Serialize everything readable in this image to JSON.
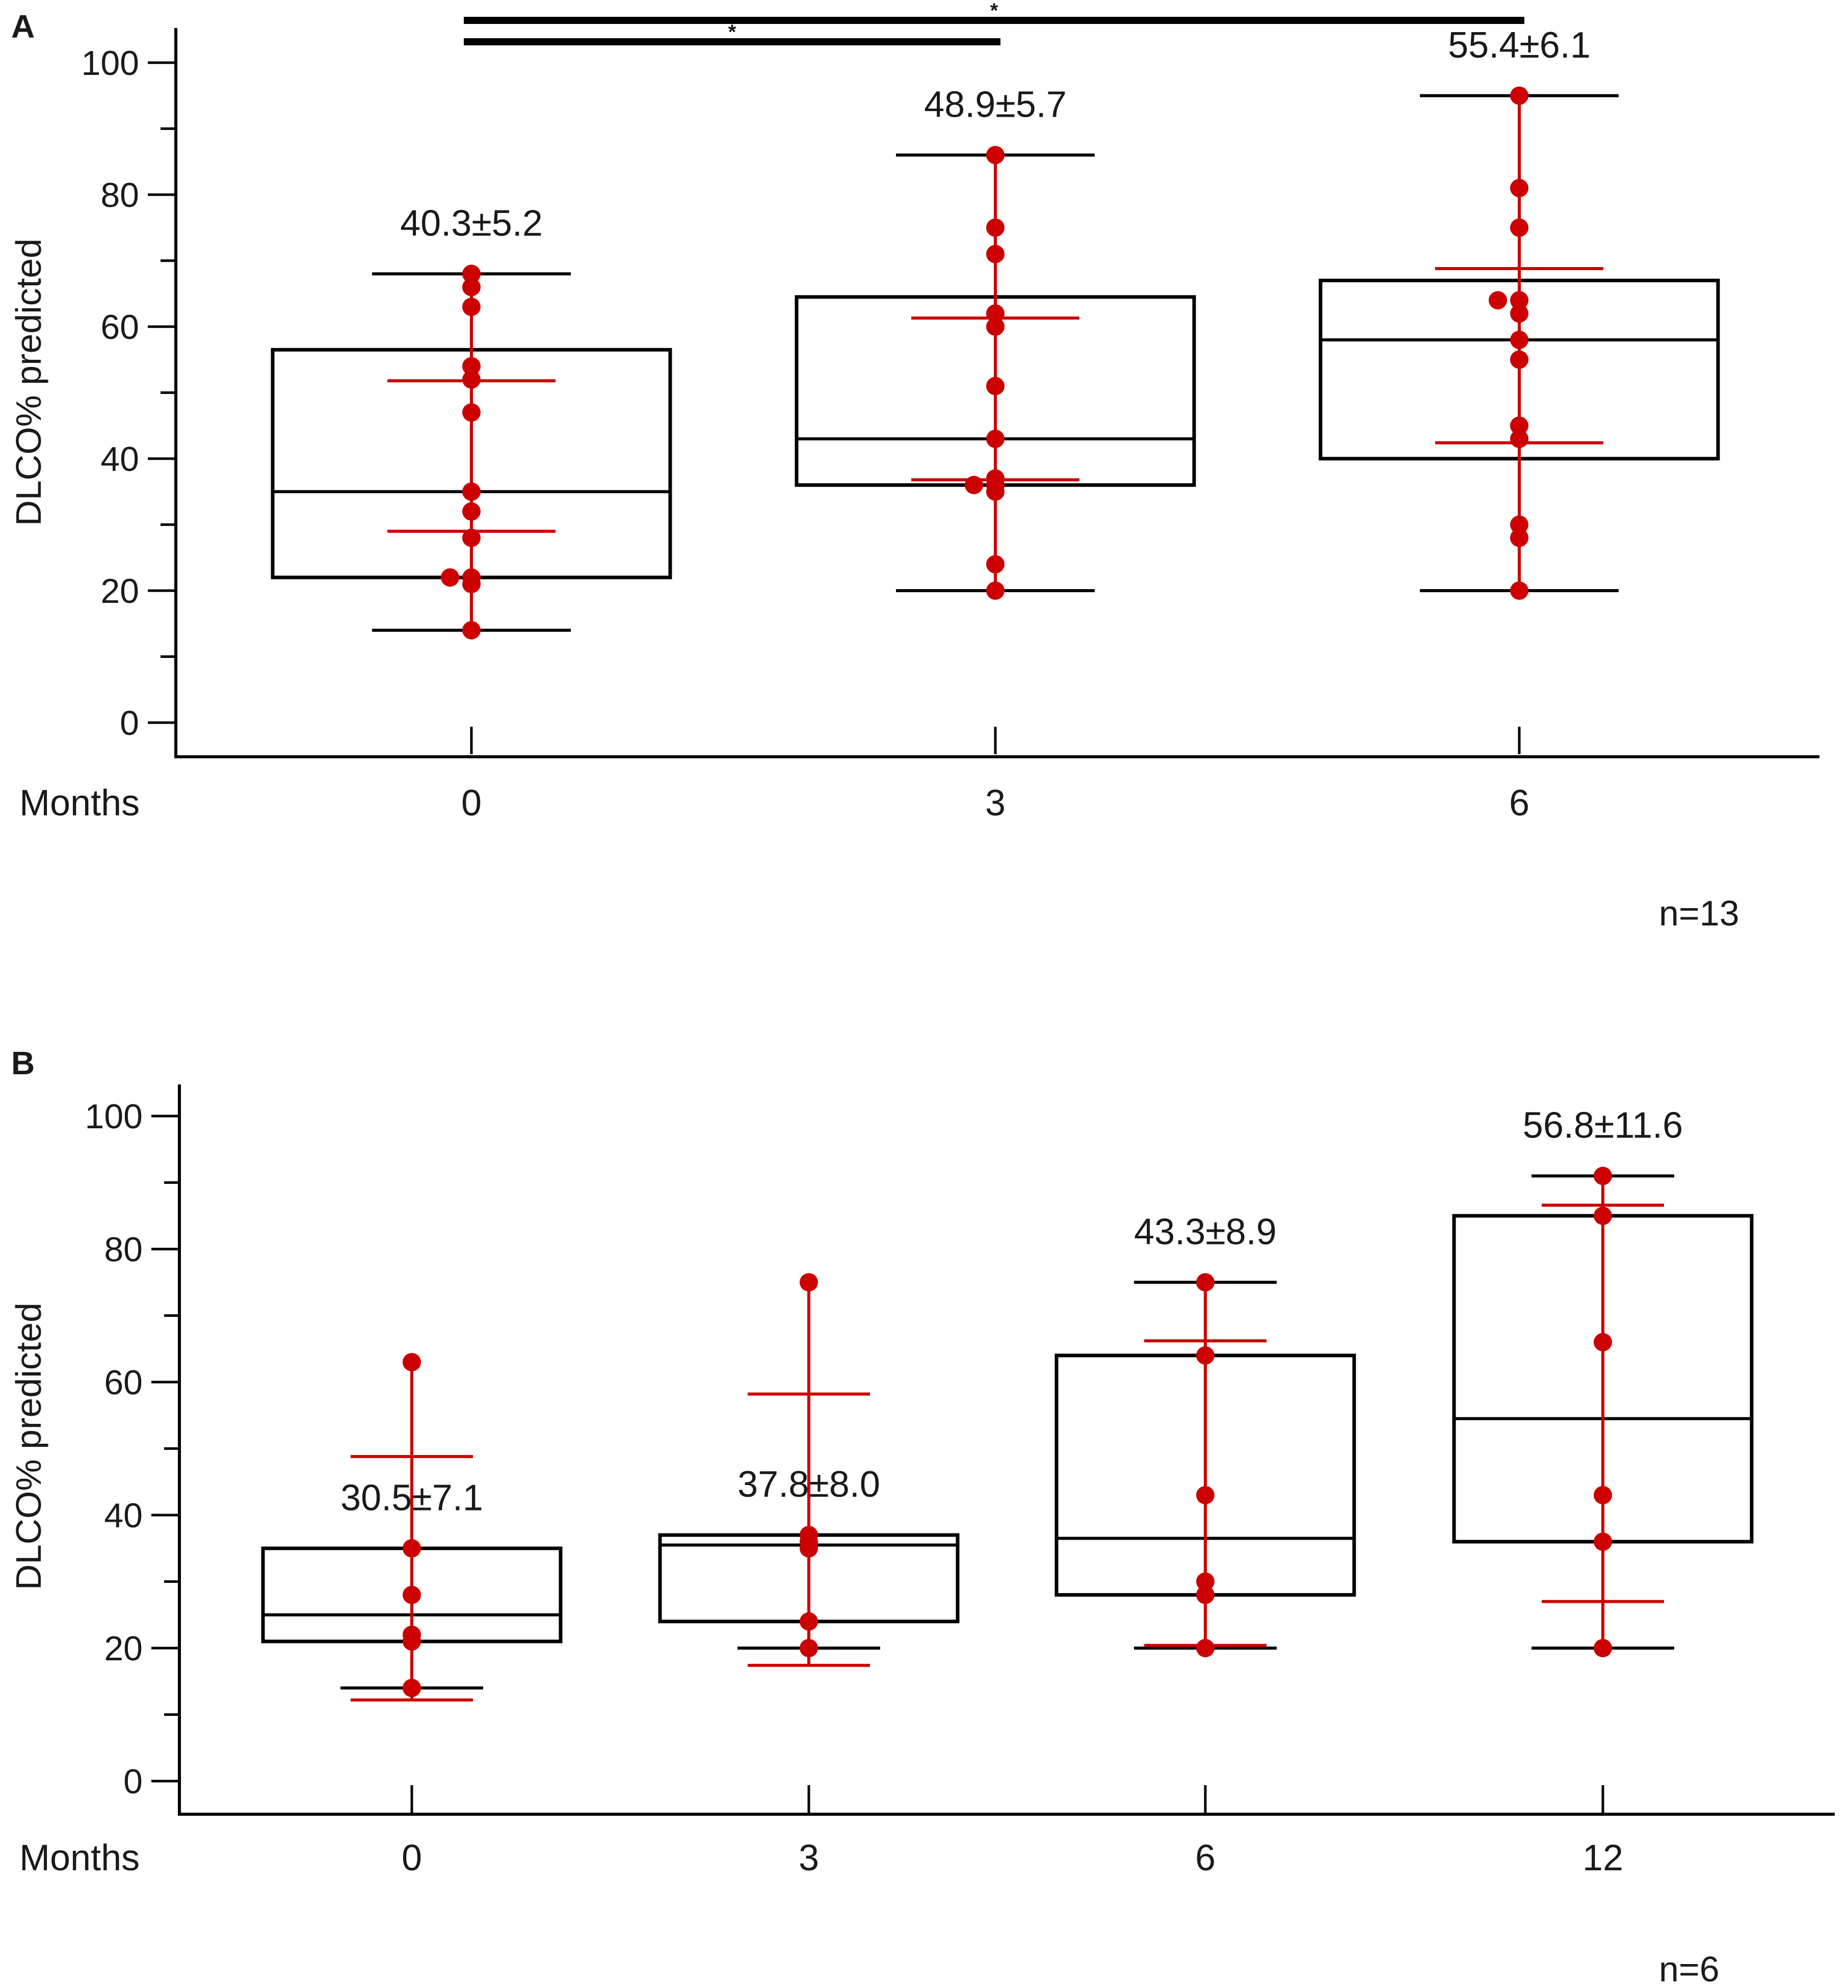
{
  "colors": {
    "box": "#000000",
    "points": "#cc0000",
    "sd": "#cc0000",
    "text": "#1a1a1a"
  },
  "chart_data": [
    {
      "panel": "A",
      "type": "box",
      "ylabel": "DLCO% predicted",
      "xlabel": "Months",
      "ylim": [
        0,
        100
      ],
      "yticks": [
        0,
        20,
        40,
        60,
        80,
        100
      ],
      "categories": [
        "0",
        "3",
        "6"
      ],
      "n_label": "n=13",
      "significance": [
        {
          "from": "0",
          "to": "6",
          "marker": "*"
        },
        {
          "from": "0",
          "to": "3",
          "marker": "*"
        }
      ],
      "groups": [
        {
          "category": "0",
          "annotation": "40.3±5.2",
          "whisker_low": 14,
          "q1": 22,
          "median": 35,
          "q3": 56.5,
          "whisker_high": 68,
          "mean_minus_sd": 29,
          "mean_plus_sd": 51.8,
          "points": [
            14,
            21,
            22,
            22,
            28,
            32,
            35,
            47,
            52,
            54,
            63,
            66,
            68
          ]
        },
        {
          "category": "3",
          "annotation": "48.9±5.7",
          "whisker_low": 20,
          "q1": 36,
          "median": 43,
          "q3": 64.5,
          "whisker_high": 86,
          "mean_minus_sd": 36.8,
          "mean_plus_sd": 61.3,
          "points": [
            20,
            24,
            35,
            36,
            37,
            36,
            43,
            51,
            60,
            62,
            71,
            75,
            86
          ]
        },
        {
          "category": "6",
          "annotation": "55.4±6.1",
          "whisker_low": 20,
          "q1": 40,
          "median": 58,
          "q3": 67,
          "whisker_high": 95,
          "mean_minus_sd": 42.4,
          "mean_plus_sd": 68.8,
          "points": [
            20,
            28,
            30,
            43,
            45,
            55,
            58,
            62,
            64,
            64,
            75,
            81,
            95
          ]
        }
      ]
    },
    {
      "panel": "B",
      "type": "box",
      "ylabel": "DLCO% predicted",
      "xlabel": "Months",
      "ylim": [
        0,
        100
      ],
      "yticks": [
        0,
        20,
        40,
        60,
        80,
        100
      ],
      "categories": [
        "0",
        "3",
        "6",
        "12"
      ],
      "n_label": "n=6",
      "significance": [],
      "groups": [
        {
          "category": "0",
          "annotation": "30.5±7.1",
          "whisker_low": 14,
          "q1": 21,
          "median": 25,
          "q3": 35,
          "whisker_high": 35,
          "mean_minus_sd": 12.2,
          "mean_plus_sd": 48.8,
          "points": [
            14,
            21,
            22,
            28,
            35,
            63
          ]
        },
        {
          "category": "3",
          "annotation": "37.8±8.0",
          "whisker_low": 20,
          "q1": 24,
          "median": 35.5,
          "q3": 37,
          "whisker_high": 37,
          "mean_minus_sd": 17.4,
          "mean_plus_sd": 58.2,
          "points": [
            20,
            24,
            35,
            36,
            37,
            75
          ]
        },
        {
          "category": "6",
          "annotation": "43.3±8.9",
          "whisker_low": 20,
          "q1": 28,
          "median": 36.5,
          "q3": 64,
          "whisker_high": 75,
          "mean_minus_sd": 20.4,
          "mean_plus_sd": 66.2,
          "points": [
            20,
            28,
            30,
            43,
            64,
            75
          ]
        },
        {
          "category": "12",
          "annotation": "56.8±11.6",
          "whisker_low": 20,
          "q1": 36,
          "median": 54.5,
          "q3": 85,
          "whisker_high": 91,
          "mean_minus_sd": 27,
          "mean_plus_sd": 86.6,
          "points": [
            20,
            36,
            43,
            66,
            85,
            91
          ]
        }
      ]
    }
  ]
}
